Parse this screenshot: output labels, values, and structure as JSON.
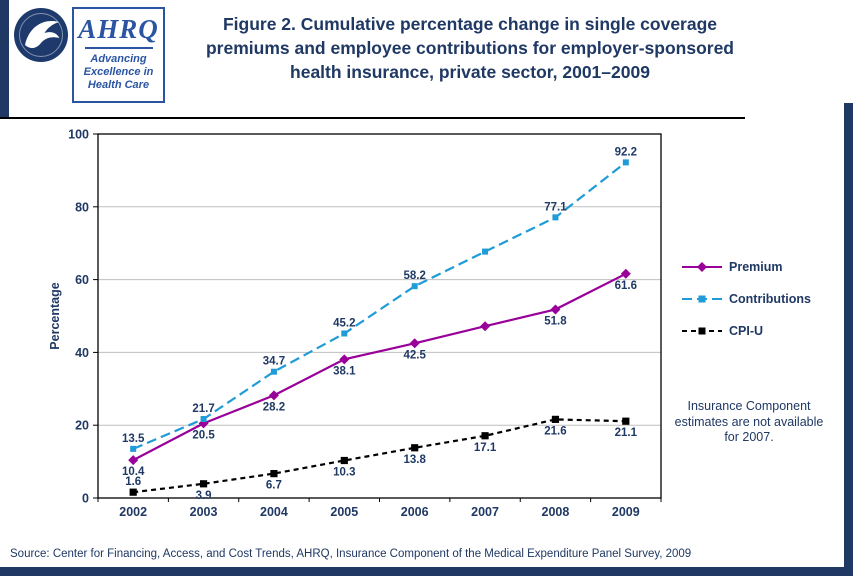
{
  "header": {
    "title": "Figure 2. Cumulative percentage change in single coverage premiums and employee contributions for employer-sponsored health insurance, private sector, 2001–2009",
    "logos": {
      "ahrq_name": "AHRQ",
      "ahrq_tagline": [
        "Advancing",
        "Excellence in",
        "Health Care"
      ]
    }
  },
  "chart_data": {
    "type": "line",
    "ylabel": "Percentage",
    "ylim": [
      0,
      100
    ],
    "yticks": [
      0,
      20,
      40,
      60,
      80,
      100
    ],
    "categories": [
      "2002",
      "2003",
      "2004",
      "2005",
      "2006",
      "2007",
      "2008",
      "2009"
    ],
    "grid": true,
    "legend_position": "right",
    "note": "Insurance Component estimates are not available for 2007.",
    "series": [
      {
        "name": "Premium",
        "color": "#990099",
        "line_style": "solid",
        "dash": "",
        "marker": "diamond",
        "values": [
          10.4,
          20.5,
          28.2,
          38.1,
          42.5,
          47.2,
          51.8,
          61.6
        ],
        "labels": [
          "10.4",
          "20.5",
          "28.2",
          "38.1",
          "42.5",
          "",
          "51.8",
          "61.6"
        ],
        "label_position": "below"
      },
      {
        "name": "Contributions",
        "color": "#1F9BD7",
        "line_style": "dashed",
        "dash": "10 5",
        "marker": "square",
        "values": [
          13.5,
          21.7,
          34.7,
          45.2,
          58.2,
          67.7,
          77.1,
          92.2
        ],
        "labels": [
          "13.5",
          "21.7",
          "34.7",
          "45.2",
          "58.2",
          "",
          "77.1",
          "92.2"
        ],
        "label_position": "above"
      },
      {
        "name": "CPI-U",
        "color": "#000000",
        "line_style": "dashed",
        "dash": "5 4",
        "marker": "square",
        "values": [
          1.6,
          3.9,
          6.7,
          10.3,
          13.8,
          17.1,
          21.6,
          21.1
        ],
        "labels": [
          "1.6",
          "3.9",
          "6.7",
          "10.3",
          "13.8",
          "17.1",
          "21.6",
          "21.1"
        ],
        "label_position": "below",
        "label_position_overrides": {
          "0": "above"
        }
      }
    ]
  },
  "footer": {
    "source": "Source: Center for Financing, Access, and Cost Trends, AHRQ, Insurance Component of the Medical Expenditure Panel Survey, 2009"
  }
}
